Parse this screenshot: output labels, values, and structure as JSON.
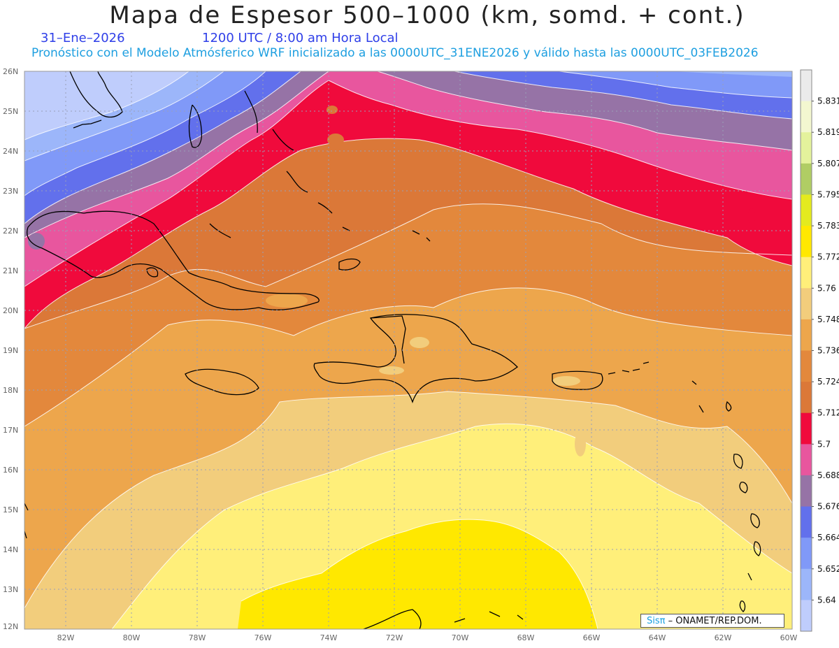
{
  "title": "Mapa de Espesor 500–1000 (km, somd. + cont.)",
  "date": "31–Ene–2026",
  "time": "1200 UTC / 8:00 am Hora Local",
  "description": "Pronóstico con el Modelo Atmósferico WRF inicializado a las 0000UTC_31ENE2026 y válido hasta las  0000UTC_03FEB2026",
  "credit": {
    "brand": "Sisπ",
    "org": " – ONAMET/REP.DOM."
  },
  "map": {
    "lon_range": [
      -83.3,
      -60
    ],
    "lat_range": [
      12,
      26
    ],
    "lat_ticks": [
      "26N",
      "25N",
      "24N",
      "23N",
      "22N",
      "21N",
      "20N",
      "19N",
      "18N",
      "17N",
      "16N",
      "15N",
      "14N",
      "13N",
      "12N"
    ],
    "lon_ticks": [
      "82W",
      "80W",
      "78W",
      "76W",
      "74W",
      "72W",
      "70W",
      "68W",
      "66W",
      "64W",
      "62W",
      "60W"
    ]
  },
  "colorbar": {
    "labels": [
      "5.831",
      "5.819",
      "5.807",
      "5.795",
      "5.783",
      "5.772",
      "5.76",
      "5.748",
      "5.736",
      "5.724",
      "5.712",
      "5.7",
      "5.688",
      "5.676",
      "5.664",
      "5.652",
      "5.64"
    ],
    "colors": [
      "#ebebeb",
      "#f3f7d0",
      "#e4f29c",
      "#b0cd64",
      "#e4ea1e",
      "#ffe800",
      "#ffef7a",
      "#f2cd7c",
      "#eda64c",
      "#e3883c",
      "#db7838",
      "#f00a3c",
      "#e8569e",
      "#9673a6",
      "#6270ec",
      "#8099f8",
      "#9cb6fa",
      "#bfcdfc"
    ]
  },
  "colors": {
    "t5640": "#bfcdfc",
    "t5652": "#9cb6fa",
    "t5664": "#8099f8",
    "t5676": "#6270ec",
    "t5688": "#9673a6",
    "t5700": "#e8569e",
    "t5712": "#f00a3c",
    "t5724": "#db7838",
    "t5736": "#e3883c",
    "t5748": "#eda64c",
    "t5760": "#f2cd7c",
    "t5772": "#ffef7a",
    "t5783": "#ffe800"
  }
}
